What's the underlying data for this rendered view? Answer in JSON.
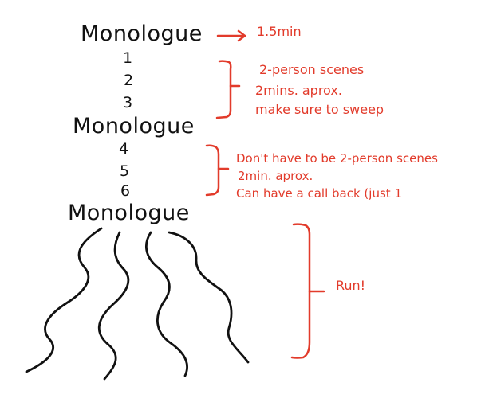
{
  "title": "",
  "colors": {
    "ink": "#111111",
    "annotation": "#e23b2b",
    "background": "#ffffff"
  },
  "structure": {
    "monologue_1": "Monologue",
    "group_1": [
      "1",
      "2",
      "3"
    ],
    "monologue_2": "Monologue",
    "group_2": [
      "4",
      "5",
      "6"
    ],
    "monologue_3": "Monologue"
  },
  "annotations": {
    "monologue_time": "1.5min",
    "group_1_lines": [
      "2-person scenes",
      "2mins. aprox.",
      "make sure to sweep"
    ],
    "group_2_lines": [
      "Don't have to be 2-person scenes",
      "2min. aprox.",
      "Can have a call back (just 1"
    ],
    "run_label": "Run!"
  }
}
